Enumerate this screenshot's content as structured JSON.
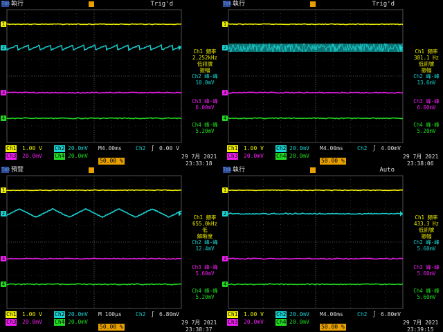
{
  "colors": {
    "ch1": "#f0f000",
    "ch2": "#19d2d2",
    "ch3": "#ee1fee",
    "ch4": "#22dd22",
    "trigger": "#e8a000",
    "grid": "#505050"
  },
  "panels": [
    {
      "brand": "Tek",
      "mode": "執行",
      "trig_state": "Trig'd",
      "ch2_wave": "sawtooth-small",
      "side": {
        "ch1": [
          "Ch1 頻率",
          "2.252kHz",
          "低訊號",
          "振幅"
        ],
        "ch2": [
          "Ch2 峰-峰",
          "10.0mV"
        ],
        "ch3": [
          "Ch3 峰-峰",
          "6.00mV"
        ],
        "ch4": [
          "Ch4 峰-峰",
          "5.20mV"
        ]
      },
      "status": {
        "ch1": "Ch1",
        "ch1_scale": "1.00 V",
        "ch2": "Ch2",
        "ch2_scale": "20.0mV",
        "timebase": "M4.00ms",
        "trig_ch": "Ch2",
        "trig_slope": "∫",
        "trig_level": "0.00 V",
        "ch3": "Ch3",
        "ch3_scale": "20.0mV",
        "ch4": "Ch4",
        "ch4_scale": "20.0mV",
        "trig_pos": "50.00 %",
        "date": "29 7月  2021",
        "time": "23:33:18"
      }
    },
    {
      "brand": "Tek",
      "mode": "執行",
      "trig_state": "Trig'd",
      "ch2_wave": "noise-band",
      "side": {
        "ch1": [
          "Ch1 頻率",
          "381.1 Hz",
          "低訊號",
          "振幅"
        ],
        "ch2": [
          "Ch2 峰-峰",
          "13.6mV"
        ],
        "ch3": [
          "Ch3 峰-峰",
          "6.00mV"
        ],
        "ch4": [
          "Ch4 峰-峰",
          "5.20mV"
        ]
      },
      "status": {
        "ch1": "Ch1",
        "ch1_scale": "1.00 V",
        "ch2": "Ch2",
        "ch2_scale": "20.0mV",
        "timebase": "M4.00ms",
        "trig_ch": "Ch2",
        "trig_slope": "∫",
        "trig_level": "4.00mV",
        "ch3": "Ch3",
        "ch3_scale": "20.0mV",
        "ch4": "Ch4",
        "ch4_scale": "20.0mV",
        "trig_pos": "50.00 %",
        "date": "29 7月  2021",
        "time": "23:38:06"
      }
    },
    {
      "brand": "Tek",
      "mode": "預覽",
      "trig_state": "",
      "ch2_wave": "triangle",
      "side": {
        "ch1": [
          "Ch1 頻率",
          "655.0kHz",
          "低",
          "解晰度"
        ],
        "ch2": [
          "Ch2 峰-峰",
          "12.4mV"
        ],
        "ch3": [
          "Ch3 峰-峰",
          "5.60mV"
        ],
        "ch4": [
          "Ch4 峰-峰",
          "5.20mV"
        ]
      },
      "status": {
        "ch1": "Ch1",
        "ch1_scale": "1.00 V",
        "ch2": "Ch2",
        "ch2_scale": "20.0mV",
        "timebase": "M 100μs",
        "trig_ch": "Ch2",
        "trig_slope": "∫",
        "trig_level": "6.80mV",
        "ch3": "Ch3",
        "ch3_scale": "20.0mV",
        "ch4": "Ch4",
        "ch4_scale": "20.0mV",
        "trig_pos": "50.00 %",
        "date": "29 7月  2021",
        "time": "23:38:37"
      }
    },
    {
      "brand": "Tek",
      "mode": "執行",
      "trig_state": "Auto",
      "ch2_wave": "flat",
      "side": {
        "ch1": [
          "Ch1 頻率",
          "433.3 Hz",
          "低訊號",
          "振幅"
        ],
        "ch2": [
          "Ch2 峰-峰",
          "5.60mV"
        ],
        "ch3": [
          "Ch3 峰-峰",
          "5.60mV"
        ],
        "ch4": [
          "Ch4 峰-峰",
          "5.60mV"
        ]
      },
      "status": {
        "ch1": "Ch1",
        "ch1_scale": "1.00 V",
        "ch2": "Ch2",
        "ch2_scale": "20.0mV",
        "timebase": "M4.00ms",
        "trig_ch": "Ch2",
        "trig_slope": "∫",
        "trig_level": "6.80mV",
        "ch3": "Ch3",
        "ch3_scale": "20.0mV",
        "ch4": "Ch4",
        "ch4_scale": "20.0mV",
        "trig_pos": "50.00 %",
        "date": "29 7月  2021",
        "time": "23:39:15"
      }
    }
  ]
}
